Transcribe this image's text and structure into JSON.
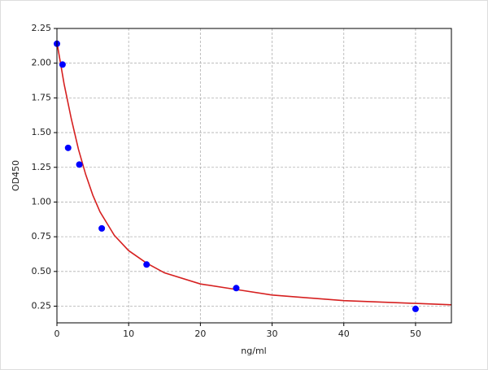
{
  "chart_data": {
    "type": "scatter",
    "x_label": "ng/ml",
    "y_label": "OD450",
    "xlim": [
      0,
      55
    ],
    "ylim": [
      0.13,
      2.25
    ],
    "xticks": [
      0,
      10,
      20,
      30,
      40,
      50
    ],
    "yticks": [
      0.25,
      {
        "value": 0.5,
        "label": "0.50"
      },
      0.75,
      {
        "value": 1,
        "label": "1.00"
      },
      1.25,
      {
        "value": 1.5,
        "label": "1.50"
      },
      1.75,
      {
        "value": 2,
        "label": "2.00"
      },
      2.25
    ],
    "grid": true,
    "series": [
      {
        "type": "line",
        "color": "#d62020",
        "x": [
          0,
          1,
          2,
          3,
          4,
          5,
          6,
          8,
          10,
          12.5,
          15,
          20,
          25,
          30,
          40,
          50,
          55
        ],
        "values": [
          2.15,
          1.85,
          1.6,
          1.38,
          1.2,
          1.05,
          0.93,
          0.76,
          0.65,
          0.56,
          0.49,
          0.41,
          0.37,
          0.33,
          0.29,
          0.27,
          0.26
        ]
      },
      {
        "type": "scatter",
        "color": "#0000ff",
        "x": [
          0,
          0.78,
          1.56,
          3.125,
          6.25,
          12.5,
          25,
          50
        ],
        "values": [
          2.14,
          1.99,
          1.39,
          1.27,
          0.81,
          0.55,
          0.38,
          0.23
        ]
      }
    ]
  }
}
